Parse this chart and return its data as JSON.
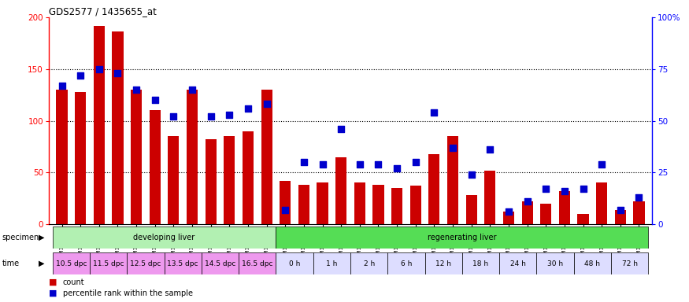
{
  "title": "GDS2577 / 1435655_at",
  "samples": [
    "GSM161128",
    "GSM161129",
    "GSM161130",
    "GSM161131",
    "GSM161132",
    "GSM161133",
    "GSM161134",
    "GSM161135",
    "GSM161136",
    "GSM161137",
    "GSM161138",
    "GSM161139",
    "GSM161108",
    "GSM161109",
    "GSM161110",
    "GSM161111",
    "GSM161112",
    "GSM161113",
    "GSM161114",
    "GSM161115",
    "GSM161116",
    "GSM161117",
    "GSM161118",
    "GSM161119",
    "GSM161120",
    "GSM161121",
    "GSM161122",
    "GSM161123",
    "GSM161124",
    "GSM161125",
    "GSM161126",
    "GSM161127"
  ],
  "counts": [
    130,
    128,
    192,
    186,
    130,
    110,
    85,
    130,
    82,
    85,
    90,
    130,
    42,
    38,
    40,
    65,
    40,
    38,
    35,
    37,
    68,
    85,
    28,
    52,
    12,
    22,
    20,
    32,
    10,
    40,
    14,
    22
  ],
  "percentile_ranks": [
    67,
    72,
    75,
    73,
    65,
    60,
    52,
    65,
    52,
    53,
    56,
    58,
    7,
    30,
    29,
    46,
    29,
    29,
    27,
    30,
    54,
    37,
    24,
    36,
    6,
    11,
    17,
    16,
    17,
    29,
    7,
    13
  ],
  "specimen_groups": [
    {
      "label": "developing liver",
      "start": 0,
      "end": 12,
      "color": "#b2f0b2"
    },
    {
      "label": "regenerating liver",
      "start": 12,
      "end": 32,
      "color": "#55dd55"
    }
  ],
  "time_labels": [
    {
      "label": "10.5 dpc",
      "start": 0,
      "end": 2
    },
    {
      "label": "11.5 dpc",
      "start": 2,
      "end": 4
    },
    {
      "label": "12.5 dpc",
      "start": 4,
      "end": 6
    },
    {
      "label": "13.5 dpc",
      "start": 6,
      "end": 8
    },
    {
      "label": "14.5 dpc",
      "start": 8,
      "end": 10
    },
    {
      "label": "16.5 dpc",
      "start": 10,
      "end": 12
    },
    {
      "label": "0 h",
      "start": 12,
      "end": 14
    },
    {
      "label": "1 h",
      "start": 14,
      "end": 16
    },
    {
      "label": "2 h",
      "start": 16,
      "end": 18
    },
    {
      "label": "6 h",
      "start": 18,
      "end": 20
    },
    {
      "label": "12 h",
      "start": 20,
      "end": 22
    },
    {
      "label": "18 h",
      "start": 22,
      "end": 24
    },
    {
      "label": "24 h",
      "start": 24,
      "end": 26
    },
    {
      "label": "30 h",
      "start": 26,
      "end": 28
    },
    {
      "label": "48 h",
      "start": 28,
      "end": 30
    },
    {
      "label": "72 h",
      "start": 30,
      "end": 32
    }
  ],
  "time_color_dpc": "#ee99ee",
  "time_color_h": "#ddddff",
  "ylim_left": [
    0,
    200
  ],
  "ylim_right": [
    0,
    100
  ],
  "yticks_left": [
    0,
    50,
    100,
    150,
    200
  ],
  "yticks_right": [
    0,
    25,
    50,
    75,
    100
  ],
  "ytick_labels_right": [
    "0",
    "25",
    "50",
    "75",
    "100%"
  ],
  "bar_color": "#cc0000",
  "dot_color": "#0000cc",
  "bg_color": "#ffffff",
  "legend_count_color": "#cc0000",
  "legend_dot_color": "#0000cc"
}
